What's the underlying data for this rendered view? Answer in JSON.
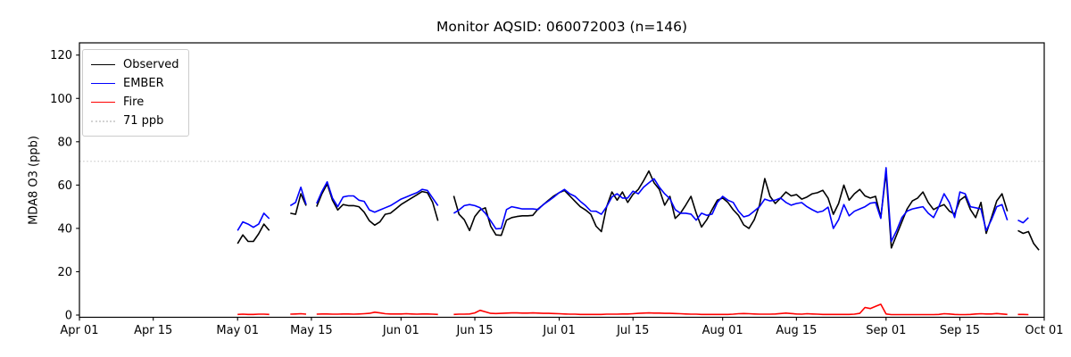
{
  "chart_data": {
    "type": "line",
    "title": "Monitor AQSID: 060072003 (n=146)",
    "ylabel": "MDA8 O3 (ppb)",
    "xlabel": "",
    "grid": false,
    "legend_position": "upper left",
    "axis_color": "#000000",
    "x_ticks": [
      {
        "day": 0,
        "label": "Apr 01"
      },
      {
        "day": 14,
        "label": "Apr 15"
      },
      {
        "day": 30,
        "label": "May 01"
      },
      {
        "day": 44,
        "label": "May 15"
      },
      {
        "day": 61,
        "label": "Jun 01"
      },
      {
        "day": 75,
        "label": "Jun 15"
      },
      {
        "day": 91,
        "label": "Jul 01"
      },
      {
        "day": 105,
        "label": "Jul 15"
      },
      {
        "day": 122,
        "label": "Aug 01"
      },
      {
        "day": 136,
        "label": "Aug 15"
      },
      {
        "day": 153,
        "label": "Sep 01"
      },
      {
        "day": 167,
        "label": "Sep 15"
      },
      {
        "day": 183,
        "label": "Oct 01"
      }
    ],
    "x_days_total": 183,
    "y_ticks": [
      0,
      20,
      40,
      60,
      80,
      100,
      120
    ],
    "ylim": [
      -1.03,
      125.65
    ],
    "reference_line": {
      "value": 71,
      "label": "71 ppb",
      "color": "#d3d3d3",
      "style": "dotted"
    },
    "series_start_day": 30,
    "series": [
      {
        "name": "Observed",
        "color": "#000000",
        "values": [
          33,
          37,
          34,
          34,
          37.5,
          42,
          39,
          null,
          null,
          null,
          47,
          46.5,
          56,
          50.5,
          null,
          50,
          56,
          60.5,
          53,
          48.5,
          51,
          50.5,
          50.5,
          50,
          47.5,
          43.5,
          41.5,
          43,
          46.5,
          47,
          49,
          51,
          52.5,
          54,
          55.5,
          57,
          56.5,
          52,
          43.5,
          null,
          null,
          55,
          46.5,
          44,
          39,
          45.5,
          48.5,
          49.5,
          41,
          37,
          36.8,
          43.8,
          45,
          45.5,
          45.8,
          45.8,
          46,
          49,
          51,
          53,
          55,
          56.5,
          57.5,
          55,
          52.5,
          50,
          48.5,
          46.5,
          41,
          38.5,
          50,
          56.8,
          53,
          56.8,
          52,
          55.7,
          58,
          62,
          66.5,
          61,
          58,
          50.7,
          54.8,
          44.6,
          47,
          50.7,
          54.8,
          47,
          40.6,
          44,
          48.7,
          53,
          54,
          52,
          48.6,
          46,
          41.6,
          40,
          44,
          50.7,
          63,
          54.8,
          51.5,
          54,
          56.8,
          55,
          55.6,
          53.5,
          54.5,
          56,
          56.5,
          57.6,
          54,
          46.5,
          51.5,
          60,
          53,
          56,
          58,
          55,
          54,
          54.8,
          45,
          66,
          31,
          37,
          43,
          49,
          52.7,
          54,
          56.8,
          52,
          48.7,
          50,
          51,
          48,
          46.6,
          53,
          54.8,
          48.7,
          45,
          52,
          37.7,
          45,
          52.7,
          56,
          47.9,
          null,
          39,
          37.7,
          38.5,
          33,
          30
        ]
      },
      {
        "name": "EMBER",
        "color": "#0000ff",
        "values": [
          39,
          43,
          42,
          40.5,
          42,
          47,
          44.5,
          null,
          null,
          null,
          50.5,
          52,
          59,
          51,
          null,
          51.5,
          57,
          61.5,
          54,
          50,
          54.5,
          55,
          55,
          53,
          52.5,
          48.5,
          47.5,
          48.5,
          49.5,
          50.5,
          52,
          53.5,
          54.5,
          55.5,
          56.5,
          58,
          57.5,
          54,
          50.5,
          null,
          null,
          47,
          48.5,
          50.5,
          51,
          50.5,
          49.5,
          47,
          43.5,
          39.8,
          40,
          48.7,
          50,
          49.5,
          49,
          49,
          49,
          48.7,
          51,
          52.7,
          54.5,
          56.5,
          58,
          56,
          54.8,
          52.5,
          50.5,
          48,
          47.9,
          46.5,
          50,
          54.5,
          56,
          54,
          54,
          57.2,
          56,
          59,
          61,
          62.9,
          59,
          56,
          53.7,
          48.7,
          47,
          47,
          46.6,
          43.8,
          47,
          46,
          46.6,
          52,
          54.8,
          53,
          52,
          48,
          45.3,
          46,
          48,
          50,
          53.5,
          52.7,
          53,
          54,
          52,
          50.7,
          51.5,
          51.9,
          50,
          48.6,
          47.4,
          48,
          49.8,
          40,
          44,
          51,
          45.8,
          47.9,
          49,
          50,
          51.6,
          52,
          44.6,
          68,
          34,
          39,
          45,
          48,
          49,
          49.5,
          50,
          47,
          45,
          50,
          56,
          52,
          45,
          56.8,
          56,
          50,
          49.5,
          49,
          39,
          44,
          50,
          51,
          43.8,
          null,
          43.8,
          42.6,
          45,
          null,
          null
        ]
      },
      {
        "name": "Fire",
        "color": "#ff0000",
        "values": [
          0.3,
          0.4,
          0.3,
          0.3,
          0.4,
          0.4,
          0.3,
          null,
          null,
          null,
          0.4,
          0.5,
          0.6,
          0.4,
          null,
          0.4,
          0.5,
          0.5,
          0.4,
          0.4,
          0.5,
          0.5,
          0.4,
          0.5,
          0.6,
          0.8,
          1.3,
          1.0,
          0.6,
          0.5,
          0.5,
          0.5,
          0.6,
          0.5,
          0.4,
          0.5,
          0.5,
          0.4,
          0.3,
          null,
          null,
          0.3,
          0.4,
          0.4,
          0.5,
          1.0,
          2.2,
          1.5,
          0.8,
          0.7,
          0.8,
          0.9,
          1.0,
          1.0,
          0.9,
          0.9,
          1.0,
          0.9,
          0.8,
          0.8,
          0.7,
          0.6,
          0.5,
          0.4,
          0.4,
          0.3,
          0.3,
          0.3,
          0.3,
          0.3,
          0.4,
          0.4,
          0.4,
          0.5,
          0.5,
          0.6,
          0.8,
          0.9,
          1.0,
          0.9,
          0.9,
          0.8,
          0.8,
          0.7,
          0.6,
          0.5,
          0.4,
          0.4,
          0.3,
          0.3,
          0.3,
          0.3,
          0.3,
          0.3,
          0.4,
          0.6,
          0.7,
          0.6,
          0.5,
          0.4,
          0.4,
          0.4,
          0.5,
          0.7,
          0.9,
          0.7,
          0.5,
          0.4,
          0.6,
          0.5,
          0.4,
          0.3,
          0.3,
          0.3,
          0.3,
          0.3,
          0.3,
          0.4,
          0.8,
          3.5,
          3.0,
          4.0,
          5.0,
          0.5,
          0.2,
          0.2,
          0.2,
          0.2,
          0.2,
          0.2,
          0.2,
          0.2,
          0.2,
          0.3,
          0.6,
          0.5,
          0.3,
          0.2,
          0.2,
          0.3,
          0.5,
          0.6,
          0.5,
          0.5,
          0.7,
          0.5,
          0.3,
          null,
          0.3,
          0.3,
          0.2,
          null,
          null
        ]
      }
    ]
  }
}
